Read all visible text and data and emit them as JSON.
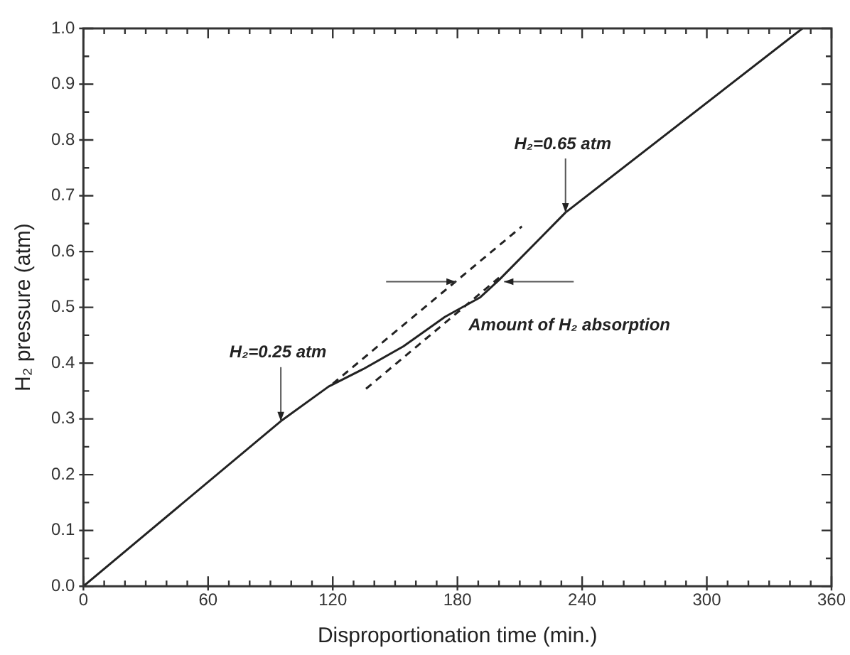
{
  "chart_data": {
    "type": "line",
    "xlabel": "Disproportionation time (min.)",
    "ylabel": "H₂ pressure (atm)",
    "xlim": [
      0,
      360
    ],
    "ylim": [
      0,
      1
    ],
    "xticks": [
      0,
      {
        "value": 10,
        "label": null
      },
      {
        "value": 20,
        "label": null
      },
      {
        "value": 30,
        "label": null
      },
      {
        "value": 40,
        "label": null
      },
      {
        "value": 50,
        "label": null
      },
      60,
      {
        "value": 70,
        "label": null
      },
      {
        "value": 80,
        "label": null
      },
      {
        "value": 90,
        "label": null
      },
      {
        "value": 100,
        "label": null
      },
      {
        "value": 110,
        "label": null
      },
      120,
      {
        "value": 130,
        "label": null
      },
      {
        "value": 140,
        "label": null
      },
      {
        "value": 150,
        "label": null
      },
      {
        "value": 160,
        "label": null
      },
      {
        "value": 170,
        "label": null
      },
      180,
      {
        "value": 190,
        "label": null
      },
      {
        "value": 200,
        "label": null
      },
      {
        "value": 210,
        "label": null
      },
      {
        "value": 220,
        "label": null
      },
      {
        "value": 230,
        "label": null
      },
      240,
      {
        "value": 250,
        "label": null
      },
      {
        "value": 260,
        "label": null
      },
      {
        "value": 270,
        "label": null
      },
      {
        "value": 280,
        "label": null
      },
      {
        "value": 290,
        "label": null
      },
      300,
      {
        "value": 310,
        "label": null
      },
      {
        "value": 320,
        "label": null
      },
      {
        "value": 330,
        "label": null
      },
      {
        "value": 340,
        "label": null
      },
      {
        "value": 350,
        "label": null
      },
      360
    ],
    "yticks": [
      {
        "value": 0,
        "label": "0.0"
      },
      {
        "value": 0.05,
        "label": null
      },
      {
        "value": 0.1,
        "label": "0.1"
      },
      {
        "value": 0.15,
        "label": null
      },
      {
        "value": 0.2,
        "label": "0.2"
      },
      {
        "value": 0.25,
        "label": null
      },
      {
        "value": 0.3,
        "label": "0.3"
      },
      {
        "value": 0.35,
        "label": null
      },
      {
        "value": 0.4,
        "label": "0.4"
      },
      {
        "value": 0.45,
        "label": null
      },
      {
        "value": 0.5,
        "label": "0.5"
      },
      {
        "value": 0.55,
        "label": null
      },
      {
        "value": 0.6,
        "label": "0.6"
      },
      {
        "value": 0.65,
        "label": null
      },
      {
        "value": 0.7,
        "label": "0.7"
      },
      {
        "value": 0.75,
        "label": null
      },
      {
        "value": 0.8,
        "label": "0.8"
      },
      {
        "value": 0.85,
        "label": null
      },
      {
        "value": 0.9,
        "label": "0.9"
      },
      {
        "value": 0.95,
        "label": null
      },
      {
        "value": 1.0,
        "label": "1.0"
      }
    ],
    "series": [
      {
        "color": "#222222",
        "line_style": "solid",
        "x": [
          0,
          95,
          118,
          135,
          154,
          174,
          191,
          200,
          232,
          346
        ],
        "values": [
          0,
          0.296,
          0.358,
          0.39,
          0.43,
          0.483,
          0.518,
          0.549,
          0.67,
          1.0
        ]
      },
      {
        "color": "#222222",
        "line_style": "dashed",
        "x": [
          120,
          211
        ],
        "values": [
          0.363,
          0.645
        ]
      },
      {
        "color": "#222222",
        "line_style": "dashed",
        "x": [
          136,
          200
        ],
        "values": [
          0.354,
          0.553
        ]
      }
    ],
    "annotations": [
      {
        "text": "H₂=0.25 atm",
        "x": 95,
        "y": 0.296
      },
      {
        "text": "H₂=0.65 atm",
        "x": 232,
        "y": 0.67
      },
      "Amount of H₂ absorption"
    ],
    "marker": "none",
    "grid": false,
    "legend": false
  }
}
